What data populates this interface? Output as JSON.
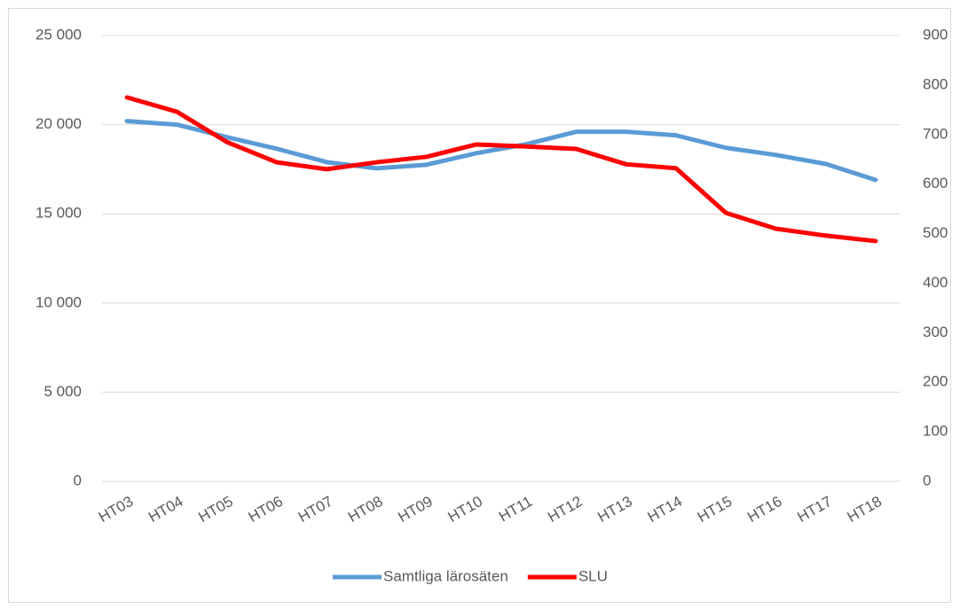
{
  "chart_data": {
    "type": "line",
    "categories": [
      "HT03",
      "HT04",
      "HT05",
      "HT06",
      "HT07",
      "HT08",
      "HT09",
      "HT10",
      "HT11",
      "HT12",
      "HT13",
      "HT14",
      "HT15",
      "HT16",
      "HT17",
      "HT18"
    ],
    "series": [
      {
        "name": "Samtliga lärosäten",
        "color": "#5b9bd5",
        "values": [
          20200,
          20000,
          19300,
          18650,
          17900,
          17550,
          17750,
          18400,
          18900,
          19600,
          19600,
          19400,
          18700,
          18300,
          17800,
          16900
        ]
      },
      {
        "name": "SLU",
        "color": "#ff0000",
        "axis": "y2",
        "values": [
          775,
          746,
          685,
          644,
          630,
          644,
          655,
          680,
          676,
          671,
          640,
          632,
          542,
          510,
          496,
          485
        ]
      }
    ],
    "ylim": [
      0,
      25000
    ],
    "yticks": [
      0,
      {
        "value": 5000,
        "label": "5 000"
      },
      {
        "value": 10000,
        "label": "10 000"
      },
      {
        "value": 15000,
        "label": "15 000"
      },
      {
        "value": 20000,
        "label": "20 000"
      },
      {
        "value": 25000,
        "label": "25 000"
      }
    ],
    "y2lim": [
      0,
      900
    ],
    "y2ticks": [
      0,
      100,
      200,
      300,
      400,
      500,
      600,
      700,
      800,
      900
    ],
    "grid": true,
    "legend": "bottom"
  }
}
